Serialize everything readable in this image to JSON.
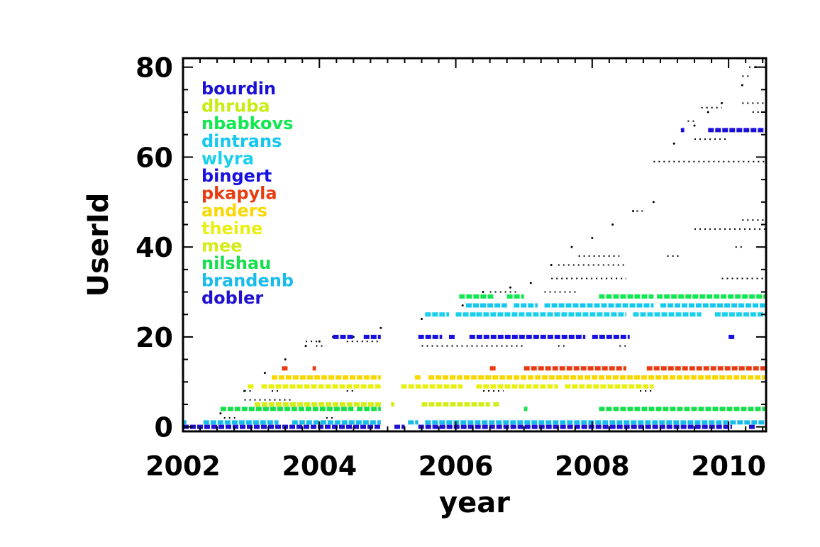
{
  "chart_data": {
    "type": "scatter",
    "xlabel": "year",
    "ylabel": "UserId",
    "xlim": [
      2002.0,
      2010.55
    ],
    "ylim": [
      -1,
      82
    ],
    "xticks": [
      2002,
      2004,
      2006,
      2008,
      2010
    ],
    "xtick_labels": [
      "2002",
      "2004",
      "2006",
      "2008",
      "2010"
    ],
    "yticks": [
      0,
      20,
      40,
      60,
      80
    ],
    "ytick_labels": [
      "0",
      "20",
      "40",
      "60",
      "80"
    ],
    "legend_placement": "top-left",
    "grid": false,
    "series": [
      {
        "name": "bourdin",
        "color": "#1a10d8",
        "userid": 66,
        "segments": [
          [
            2009.3,
            2009.35
          ],
          [
            2009.7,
            2010.55
          ]
        ]
      },
      {
        "name": "dhruba",
        "color": "#c8ec14",
        "userid": 64,
        "segments": []
      },
      {
        "name": "nbabkovs",
        "color": "#10e850",
        "userid": 29,
        "segments": [
          [
            2006.05,
            2006.55
          ],
          [
            2006.75,
            2007.0
          ],
          [
            2008.1,
            2008.9
          ],
          [
            2008.95,
            2010.55
          ]
        ]
      },
      {
        "name": "dintrans",
        "color": "#14c8f0",
        "userid": 27,
        "segments": [
          [
            2006.15,
            2006.75
          ],
          [
            2006.85,
            2007.2
          ],
          [
            2007.3,
            2008.9
          ],
          [
            2009.0,
            2010.55
          ]
        ]
      },
      {
        "name": "wlyra",
        "color": "#18d0ec",
        "userid": 25,
        "segments": [
          [
            2005.55,
            2005.9
          ],
          [
            2006.0,
            2006.3
          ],
          [
            2006.3,
            2008.5
          ],
          [
            2008.6,
            2009.6
          ],
          [
            2009.8,
            2010.55
          ]
        ]
      },
      {
        "name": "bingert",
        "color": "#1810e0",
        "userid": 20,
        "segments": [
          [
            2004.2,
            2004.5
          ],
          [
            2004.65,
            2004.9
          ],
          [
            2005.45,
            2005.8
          ],
          [
            2005.9,
            2006.0
          ],
          [
            2006.2,
            2007.9
          ],
          [
            2008.0,
            2008.55
          ],
          [
            2010.0,
            2010.1
          ]
        ]
      },
      {
        "name": "pkapyla",
        "color": "#e83c10",
        "userid": 13,
        "segments": [
          [
            2003.45,
            2003.55
          ],
          [
            2003.9,
            2003.95
          ],
          [
            2006.5,
            2006.6
          ],
          [
            2007.0,
            2008.5
          ],
          [
            2008.8,
            2010.55
          ]
        ]
      },
      {
        "name": "anders",
        "color": "#f8d800",
        "userid": 11,
        "segments": [
          [
            2003.3,
            2004.9
          ],
          [
            2005.4,
            2005.5
          ],
          [
            2005.6,
            2010.55
          ]
        ]
      },
      {
        "name": "theine",
        "color": "#e8f010",
        "userid": 9,
        "segments": [
          [
            2002.95,
            2003.05
          ],
          [
            2003.15,
            2004.9
          ],
          [
            2005.2,
            2006.1
          ],
          [
            2006.3,
            2007.5
          ],
          [
            2007.6,
            2008.9
          ]
        ]
      },
      {
        "name": "mee",
        "color": "#d4ec18",
        "userid": 5,
        "segments": [
          [
            2003.05,
            2004.9
          ],
          [
            2005.05,
            2005.1
          ],
          [
            2005.5,
            2006.5
          ],
          [
            2006.55,
            2006.65
          ]
        ]
      },
      {
        "name": "nilshau",
        "color": "#14e04c",
        "userid": 4,
        "segments": [
          [
            2002.55,
            2004.5
          ],
          [
            2004.55,
            2004.9
          ],
          [
            2007.0,
            2007.05
          ],
          [
            2008.1,
            2010.55
          ]
        ]
      },
      {
        "name": "brandenb",
        "color": "#18bcec",
        "userid": 1,
        "segments": [
          [
            2002.0,
            2002.05
          ],
          [
            2002.3,
            2003.4
          ],
          [
            2003.6,
            2004.9
          ],
          [
            2005.3,
            2005.45
          ],
          [
            2005.55,
            2010.55
          ]
        ]
      },
      {
        "name": "dobler",
        "color": "#2010d0",
        "userid": 0,
        "segments": [
          [
            2002.0,
            2004.9
          ],
          [
            2005.1,
            2005.25
          ],
          [
            2005.45,
            2010.05
          ],
          [
            2010.3,
            2010.4
          ]
        ]
      }
    ],
    "other_users": {
      "color": "#000000",
      "lines": [
        {
          "userid": 80,
          "segments": [
            [
              2010.3,
              2010.55
            ]
          ]
        },
        {
          "userid": 78,
          "segments": [
            [
              2010.2,
              2010.3
            ]
          ]
        },
        {
          "userid": 72,
          "segments": [
            [
              2010.2,
              2010.55
            ]
          ]
        },
        {
          "userid": 71,
          "segments": [
            [
              2009.6,
              2009.9
            ]
          ]
        },
        {
          "userid": 70,
          "segments": [
            [
              2010.35,
              2010.55
            ]
          ]
        },
        {
          "userid": 68,
          "segments": [
            [
              2009.4,
              2009.5
            ]
          ]
        },
        {
          "userid": 64,
          "segments": [
            [
              2009.5,
              2010.0
            ]
          ]
        },
        {
          "userid": 59,
          "segments": [
            [
              2008.9,
              2010.55
            ]
          ]
        },
        {
          "userid": 48,
          "segments": [
            [
              2008.65,
              2008.75
            ]
          ]
        },
        {
          "userid": 46,
          "segments": [
            [
              2010.2,
              2010.55
            ]
          ]
        },
        {
          "userid": 44,
          "segments": [
            [
              2009.5,
              2010.55
            ]
          ]
        },
        {
          "userid": 40,
          "segments": [
            [
              2010.1,
              2010.2
            ]
          ]
        },
        {
          "userid": 38,
          "segments": [
            [
              2007.8,
              2008.4
            ],
            [
              2009.1,
              2009.3
            ]
          ]
        },
        {
          "userid": 36,
          "segments": [
            [
              2007.5,
              2008.5
            ]
          ]
        },
        {
          "userid": 33,
          "segments": [
            [
              2007.4,
              2008.5
            ],
            [
              2009.9,
              2010.55
            ]
          ]
        },
        {
          "userid": 30,
          "segments": [
            [
              2006.5,
              2006.9
            ],
            [
              2007.3,
              2007.8
            ]
          ]
        },
        {
          "userid": 19,
          "segments": [
            [
              2003.8,
              2004.0
            ],
            [
              2004.4,
              2004.9
            ]
          ]
        },
        {
          "userid": 18,
          "segments": [
            [
              2003.95,
              2004.1
            ],
            [
              2005.5,
              2007.0
            ],
            [
              2007.5,
              2007.6
            ],
            [
              2008.4,
              2008.5
            ]
          ]
        },
        {
          "userid": 8,
          "segments": [
            [
              2002.9,
              2003.0
            ],
            [
              2003.3,
              2003.4
            ],
            [
              2004.4,
              2004.5
            ],
            [
              2006.4,
              2006.7
            ],
            [
              2008.7,
              2008.9
            ]
          ]
        },
        {
          "userid": 6,
          "segments": [
            [
              2002.9,
              2003.6
            ]
          ]
        },
        {
          "userid": 2,
          "segments": [
            [
              2002.6,
              2002.8
            ],
            [
              2004.1,
              2004.2
            ]
          ]
        }
      ],
      "diagonal": [
        [
          2002.55,
          3
        ],
        [
          2002.9,
          8
        ],
        [
          2003.2,
          12
        ],
        [
          2003.5,
          15
        ],
        [
          2003.8,
          18
        ],
        [
          2004.0,
          19
        ],
        [
          2004.2,
          20
        ],
        [
          2004.5,
          20
        ],
        [
          2004.9,
          22
        ],
        [
          2005.5,
          24
        ],
        [
          2006.1,
          27
        ],
        [
          2006.4,
          30
        ],
        [
          2006.8,
          31
        ],
        [
          2007.1,
          32
        ],
        [
          2007.4,
          36
        ],
        [
          2007.7,
          40
        ],
        [
          2008.0,
          42
        ],
        [
          2008.3,
          45
        ],
        [
          2008.6,
          48
        ],
        [
          2008.9,
          50
        ],
        [
          2009.2,
          63
        ],
        [
          2009.5,
          67
        ],
        [
          2009.7,
          70
        ],
        [
          2009.9,
          72
        ],
        [
          2010.2,
          76
        ],
        [
          2010.4,
          80
        ]
      ]
    }
  }
}
